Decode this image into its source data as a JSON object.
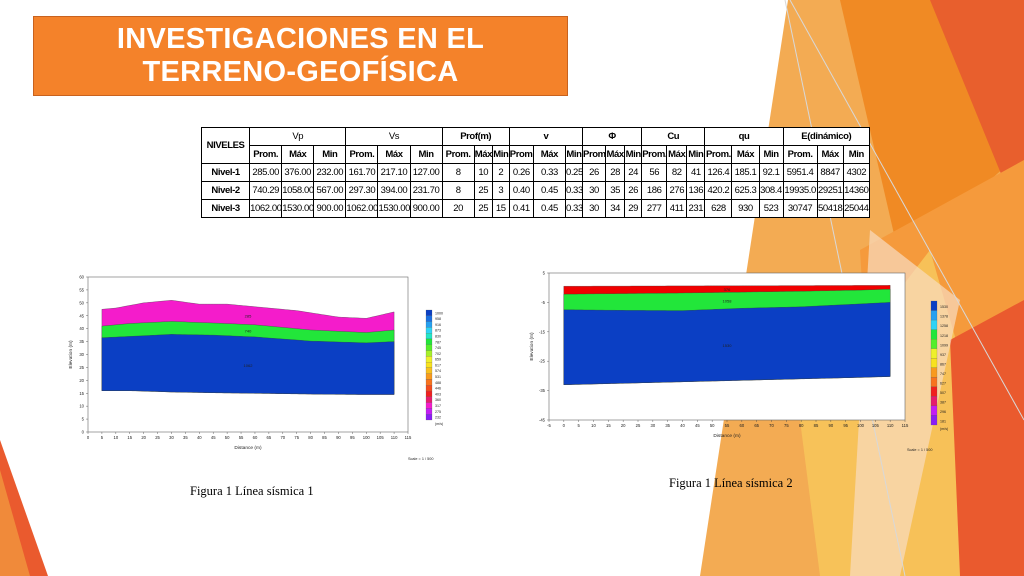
{
  "slide": {
    "title_line1": "INVESTIGACIONES EN EL",
    "title_line2": "TERRENO-GEOFÍSICA",
    "colors": {
      "title_bg": "#f4822a",
      "accent_orange": "#f08a24",
      "accent_red": "#e8532a",
      "accent_yellow": "#f6c75a"
    }
  },
  "table": {
    "corner": "NIVELES",
    "groups": [
      "Vp",
      "Vs",
      "Prof(m)",
      "v",
      "Φ",
      "Cu",
      "qu",
      "E(dinámico)"
    ],
    "subheaders": [
      "Prom.",
      "Máx",
      "Min",
      "Prom.",
      "Máx",
      "Min",
      "Prom.",
      "Máx",
      "Min",
      "Prom.",
      "Máx",
      "Min",
      "Prom.",
      "Máx",
      "Min",
      "Prom.",
      "Máx",
      "Min",
      "Prom.",
      "Máx",
      "Min",
      "Prom.",
      "Máx",
      "Min"
    ],
    "rows": [
      {
        "label": "Nivel-1",
        "cells": [
          "285.00",
          "376.00",
          "232.00",
          "161.70",
          "217.10",
          "127.00",
          "8",
          "10",
          "2",
          "0.26",
          "0.33",
          "0.25",
          "26",
          "28",
          "24",
          "56",
          "82",
          "41",
          "126.4",
          "185.1",
          "92.1",
          "5951.4",
          "8847",
          "4302"
        ]
      },
      {
        "label": "Nivel-2",
        "cells": [
          "740.29",
          "1058.00",
          "567.00",
          "297.30",
          "394.00",
          "231.70",
          "8",
          "25",
          "3",
          "0.40",
          "0.45",
          "0.33",
          "30",
          "35",
          "26",
          "186",
          "276",
          "136",
          "420.2",
          "625.3",
          "308.4",
          "19935.0",
          "29251",
          "14360"
        ]
      },
      {
        "label": "Nivel-3",
        "cells": [
          "1062.00",
          "1530.00",
          "900.00",
          "1062.00",
          "1530.00",
          "900.00",
          "20",
          "25",
          "15",
          "0.41",
          "0.45",
          "0.33",
          "30",
          "34",
          "29",
          "277",
          "411",
          "231",
          "628",
          "930",
          "523",
          "30747",
          "50418",
          "25044"
        ]
      }
    ]
  },
  "chart_data": [
    {
      "type": "area",
      "xlabel": "Distance (m)",
      "ylabel": "Elevation (m)",
      "xlim": [
        0,
        115
      ],
      "ylim": [
        0,
        60
      ],
      "x_ticks": [
        "0",
        "5",
        "10",
        "15",
        "20",
        "25",
        "30",
        "35",
        "40",
        "45",
        "50",
        "55",
        "60",
        "65",
        "70",
        "75",
        "80",
        "85",
        "90",
        "95",
        "100",
        "105",
        "110",
        "115"
      ],
      "y_ticks": [
        "0",
        "5",
        "10",
        "15",
        "20",
        "25",
        "30",
        "35",
        "40",
        "45",
        "50",
        "55",
        "60"
      ],
      "layers": [
        {
          "color": "#0b3fc4",
          "x": [
            5,
            15,
            30,
            45,
            60,
            80,
            100,
            110
          ],
          "top": [
            36.5,
            37,
            37.8,
            37.5,
            36.8,
            35.2,
            34.5,
            35
          ],
          "bottom": [
            16,
            16,
            15.5,
            15.2,
            15,
            14.7,
            14.5,
            14.5
          ],
          "label": "1062"
        },
        {
          "color": "#22e63a",
          "x": [
            5,
            15,
            30,
            45,
            60,
            80,
            100,
            110
          ],
          "top": [
            41,
            42,
            42.8,
            42.2,
            41.5,
            39.5,
            38.5,
            39.5
          ],
          "label": "740"
        },
        {
          "color": "#f41ccb",
          "x": [
            5,
            10,
            20,
            30,
            40,
            50,
            60,
            75,
            90,
            100,
            110
          ],
          "top": [
            47.5,
            48,
            50,
            51,
            49.5,
            49.5,
            48.5,
            47,
            44.5,
            44,
            46.5
          ],
          "label": "285"
        }
      ],
      "legend_values": [
        "1000",
        "958",
        "916",
        "873",
        "830",
        "787",
        "745",
        "702",
        "659",
        "617",
        "574",
        "531",
        "488",
        "446",
        "403",
        "360",
        "317",
        "275",
        "232"
      ],
      "legend_unit": "(m/s)",
      "scale_text": "Scale = 1 / 500"
    },
    {
      "type": "area",
      "xlabel": "Distance (m)",
      "ylabel": "Elevation (m)",
      "xlim": [
        -5,
        115
      ],
      "ylim": [
        -45,
        5
      ],
      "x_ticks": [
        "-5",
        "0",
        "5",
        "10",
        "15",
        "20",
        "25",
        "30",
        "35",
        "40",
        "45",
        "50",
        "55",
        "60",
        "65",
        "70",
        "75",
        "80",
        "85",
        "90",
        "95",
        "100",
        "105",
        "110",
        "115"
      ],
      "y_ticks": [
        "5",
        "-5",
        "-15",
        "-25",
        "-35",
        "-45"
      ],
      "layers": [
        {
          "color": "#0b3fc4",
          "x": [
            0,
            20,
            40,
            60,
            80,
            100,
            110
          ],
          "top": [
            -7.5,
            -7.7,
            -7.8,
            -7.0,
            -6.5,
            -5.5,
            -5.0
          ],
          "bottom": [
            -33,
            -32.5,
            -32,
            -31.5,
            -31,
            -30.5,
            -30.2
          ],
          "label": "1530"
        },
        {
          "color": "#22e63a",
          "x": [
            0,
            20,
            40,
            60,
            80,
            100,
            110
          ],
          "top": [
            -2.2,
            -2.0,
            -1.8,
            -1.5,
            -1.2,
            -0.8,
            -0.5
          ],
          "label": "1058"
        },
        {
          "color": "#f00000",
          "x": [
            0,
            110
          ],
          "top": [
            0.5,
            0.8
          ],
          "label": "376"
        }
      ],
      "legend_values": [
        "1530",
        "1378",
        "1258",
        "1218",
        "1099",
        "937",
        "867",
        "747",
        "627",
        "507",
        "387",
        "296",
        "181"
      ],
      "legend_unit": "(m/s)",
      "scale_text": "Scale = 1 / 500"
    }
  ],
  "captions": {
    "fig1": "Figura 1  Línea sísmica 1",
    "fig2": "Figura 1  Línea sísmica 2"
  }
}
